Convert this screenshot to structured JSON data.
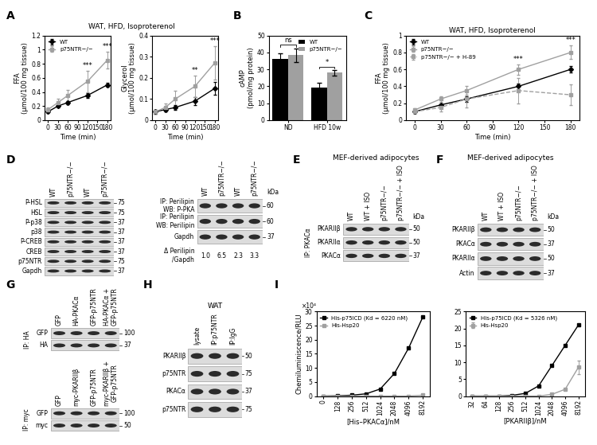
{
  "chart_data": [
    {
      "type": "line",
      "panel": "A",
      "title": "WAT, HFD, Isoproterenol",
      "x": [
        0,
        30,
        60,
        120,
        180
      ],
      "xlim": [
        -10,
        190
      ],
      "xticks": [
        0,
        30,
        60,
        90,
        120,
        150,
        180
      ],
      "ylim": [
        0,
        1.2
      ],
      "yticks": [
        0,
        0.2,
        0.4,
        0.6,
        0.8,
        1,
        1.2
      ],
      "x_label": "Time (min)",
      "y_label": "FFA\n(μmol/100 mg tissue)",
      "legend": "upper left",
      "series": [
        {
          "name": "WT",
          "color": "#000000",
          "marker": "diamond",
          "line_style": "solid",
          "values": [
            0.12,
            0.2,
            0.25,
            0.35,
            0.5
          ],
          "errors": [
            0.02,
            0.02,
            0.02,
            0.03,
            0.03
          ]
        },
        {
          "name": "p75NTR−/−",
          "color": "#a0a0a0",
          "marker": "square",
          "line_style": "solid",
          "values": [
            0.15,
            0.25,
            0.35,
            0.55,
            0.85
          ],
          "errors": [
            0.03,
            0.05,
            0.08,
            0.15,
            0.12
          ]
        }
      ],
      "annotations": [
        {
          "text": "***",
          "x": 120
        },
        {
          "text": "***",
          "x": 180
        }
      ]
    },
    {
      "type": "line",
      "x": [
        0,
        30,
        60,
        120,
        180
      ],
      "xlim": [
        -10,
        190
      ],
      "xticks": [
        0,
        30,
        60,
        90,
        120,
        150,
        180
      ],
      "ylim": [
        0,
        0.4
      ],
      "yticks": [
        0,
        0.1,
        0.2,
        0.3,
        0.4
      ],
      "x_label": "Time (min)",
      "y_label": "Glycerol\n(μmol/100 mg tissue)",
      "series": [
        {
          "color": "#000000",
          "marker": "diamond",
          "line_style": "solid",
          "values": [
            0.04,
            0.05,
            0.06,
            0.09,
            0.15
          ],
          "errors": [
            0.01,
            0.01,
            0.01,
            0.02,
            0.03
          ]
        },
        {
          "color": "#a0a0a0",
          "marker": "square",
          "line_style": "solid",
          "values": [
            0.04,
            0.06,
            0.1,
            0.16,
            0.27
          ],
          "errors": [
            0.01,
            0.02,
            0.04,
            0.05,
            0.08
          ]
        }
      ],
      "annotations": [
        {
          "text": "**",
          "x": 120
        },
        {
          "text": "***",
          "x": 180
        }
      ]
    },
    {
      "type": "bar",
      "panel": "B",
      "categories": [
        "ND",
        "HFD 10w"
      ],
      "ylim": [
        0,
        50
      ],
      "yticks": [
        0,
        10,
        20,
        30,
        40,
        50
      ],
      "y_label": "cAMP\n(pmol/mg protein)",
      "legend": "upper right",
      "series": [
        {
          "name": "WT",
          "color": "#000000",
          "values": [
            36,
            19.5
          ],
          "errors": [
            3.5,
            2.5
          ]
        },
        {
          "name": "p75NTR−/−",
          "color": "#a0a0a0",
          "values": [
            38.5,
            28
          ],
          "errors": [
            4,
            1.5
          ]
        }
      ],
      "annotations": [
        {
          "text": "ns",
          "category": "ND"
        },
        {
          "text": "*",
          "category": "HFD 10w"
        }
      ]
    },
    {
      "type": "line",
      "panel": "C",
      "title": "WAT, HFD, Isoproterenol",
      "x": [
        0,
        30,
        60,
        120,
        180
      ],
      "xlim": [
        -10,
        190
      ],
      "xticks": [
        0,
        30,
        60,
        90,
        120,
        150,
        180
      ],
      "ylim": [
        0,
        1
      ],
      "yticks": [
        0,
        0.2,
        0.4,
        0.6,
        0.8,
        1
      ],
      "x_label": "Time (min)",
      "y_label": "FFA\n(μmol/100 mg tissue)",
      "legend": "upper left",
      "series": [
        {
          "name": "WT",
          "color": "#000000",
          "marker": "diamond",
          "line_style": "solid",
          "values": [
            0.1,
            0.18,
            0.25,
            0.4,
            0.6
          ],
          "errors": [
            0.02,
            0.02,
            0.03,
            0.03,
            0.04
          ]
        },
        {
          "name": "p75NTR−/−",
          "color": "#a0a0a0",
          "marker": "square",
          "line_style": "solid",
          "values": [
            0.12,
            0.25,
            0.35,
            0.6,
            0.8
          ],
          "errors": [
            0.02,
            0.03,
            0.05,
            0.06,
            0.08
          ]
        },
        {
          "name": "p75NTR−/− + H-89",
          "color": "#a0a0a0",
          "marker": "square",
          "line_style": "dashed",
          "values": [
            0.1,
            0.15,
            0.25,
            0.35,
            0.3
          ],
          "errors": [
            0.03,
            0.05,
            0.1,
            0.15,
            0.12
          ]
        }
      ],
      "annotations": [
        {
          "text": "***",
          "x": 120
        },
        {
          "text": "***",
          "x": 180
        }
      ]
    },
    {
      "type": "line",
      "panel": "I",
      "categories": [
        "0",
        "128",
        "256",
        "512",
        "1024",
        "2048",
        "4096",
        "8192"
      ],
      "ylim": [
        0,
        30
      ],
      "yticks": [
        0,
        5,
        10,
        15,
        20,
        25,
        30
      ],
      "x_label": "[His–PKACα]/nM",
      "y_label": "Chemiluminiscence/RLU",
      "note": "×10⁴",
      "legend": "upper left",
      "series": [
        {
          "name": "His-p75ICD (Kd = 6220 nM)",
          "color": "#000000",
          "marker": "square",
          "line_style": "solid",
          "values": [
            0,
            0.1,
            0.3,
            0.8,
            2.5,
            8,
            17,
            28
          ]
        },
        {
          "name": "His-Hsp20",
          "color": "#a0a0a0",
          "marker": "square",
          "line_style": "solid",
          "values": [
            0,
            0,
            0,
            0,
            0,
            0,
            0,
            0.3
          ]
        }
      ]
    },
    {
      "type": "line",
      "categories": [
        "32",
        "64",
        "128",
        "256",
        "512",
        "1024",
        "2048",
        "4096",
        "8192"
      ],
      "ylim": [
        0,
        25
      ],
      "yticks": [
        0,
        5,
        10,
        15,
        20,
        25
      ],
      "x_label": "[PKARIIβ]/nM",
      "legend": "upper left",
      "series": [
        {
          "name": "His-p75ICD (Kd = 5326 nM)",
          "color": "#000000",
          "marker": "square",
          "line_style": "solid",
          "values": [
            0,
            0,
            0,
            0.2,
            0.8,
            3,
            9,
            15,
            21
          ]
        },
        {
          "name": "His-Hsp20",
          "color": "#a0a0a0",
          "marker": "square",
          "line_style": "solid",
          "values": [
            0,
            0,
            0,
            0,
            0,
            0,
            0.5,
            2,
            8.5
          ],
          "errors": [
            0,
            0,
            0,
            0,
            0,
            0,
            0,
            0,
            2
          ]
        }
      ]
    }
  ],
  "blots": [
    {
      "panel": "D",
      "lanes": [
        "WT",
        "p75NTR−/−",
        "WT",
        "p75NTR−/−"
      ],
      "rows": [
        {
          "label": "P-HSL",
          "kda": 75
        },
        {
          "label": "HSL",
          "kda": 75
        },
        {
          "label": "P-p38",
          "kda": 37
        },
        {
          "label": "p38",
          "kda": 37
        },
        {
          "label": "P-CREB",
          "kda": 37
        },
        {
          "label": "CREB",
          "kda": 37
        },
        {
          "label": "p75NTR",
          "kda": 75
        },
        {
          "label": "Gapdh",
          "kda": 37
        }
      ]
    },
    {
      "lanes": [
        "WT",
        "p75NTR−/−",
        "WT",
        "p75NTR−/−"
      ],
      "kda_header": "kDa",
      "rows": [
        {
          "label": "IP: Perilipin\nWB: P-PKA",
          "kda": 60
        },
        {
          "label": "IP: Perilipin\nWB: Perilipin",
          "kda": 60
        },
        {
          "label": "Gapdh",
          "kda": 37
        }
      ],
      "footer": {
        "label": "Δ Perilipin\n/Gapdh",
        "values": [
          1.0,
          6.5,
          2.3,
          3.3
        ]
      }
    },
    {
      "panel": "E",
      "title": "MEF-derived adipocytes",
      "ip": "IP: PKACα",
      "kda_header": "kDa",
      "lanes": [
        "WT",
        "WT + ISO",
        "p75NTR−/−",
        "p75NTR−/− + ISO"
      ],
      "rows": [
        {
          "label": "PKARIIβ",
          "kda": 50
        },
        {
          "label": "PKARIIα",
          "kda": 50
        },
        {
          "label": "PKACα",
          "kda": 37
        }
      ]
    },
    {
      "panel": "F",
      "title": "MEF-derived adipocytes",
      "kda_header": "kDa",
      "lanes": [
        "WT",
        "WT + ISO",
        "p75NTR−/−",
        "p75NTR−/− + ISO"
      ],
      "rows": [
        {
          "label": "PKARIIβ",
          "kda": 50
        },
        {
          "label": "PKACα",
          "kda": 37
        },
        {
          "label": "PKARIIα",
          "kda": 50
        },
        {
          "label": "Actin",
          "kda": 37
        }
      ]
    },
    {
      "panel": "G",
      "ip": "IP: HA",
      "lanes": [
        "GFP",
        "HA-PKACα",
        "GFP-p75NTR",
        "HA-PKACα +\nGFP-p75NTR"
      ],
      "rows": [
        {
          "label": "GFP",
          "kda": 100
        },
        {
          "label": "HA",
          "kda": 37
        }
      ]
    },
    {
      "ip": "IP: myc",
      "lanes": [
        "GFP",
        "myc-PKARIIβ",
        "GFP-p75NTR",
        "myc-PKARIIβ +\nGFP-p75NTR"
      ],
      "rows": [
        {
          "label": "GFP",
          "kda": 100
        },
        {
          "label": "myc",
          "kda": 50
        }
      ]
    },
    {
      "panel": "H",
      "title": "WAT",
      "lanes": [
        "lysate",
        "IP:p75NTR",
        "IP:IgG"
      ],
      "rows": [
        {
          "label": "PKARIIβ",
          "kda": 50
        },
        {
          "label": "p75NTR",
          "kda": 75
        },
        {
          "label": "PKACα",
          "kda": 37
        },
        {
          "label": "p75NTR",
          "kda": 75
        }
      ]
    }
  ]
}
